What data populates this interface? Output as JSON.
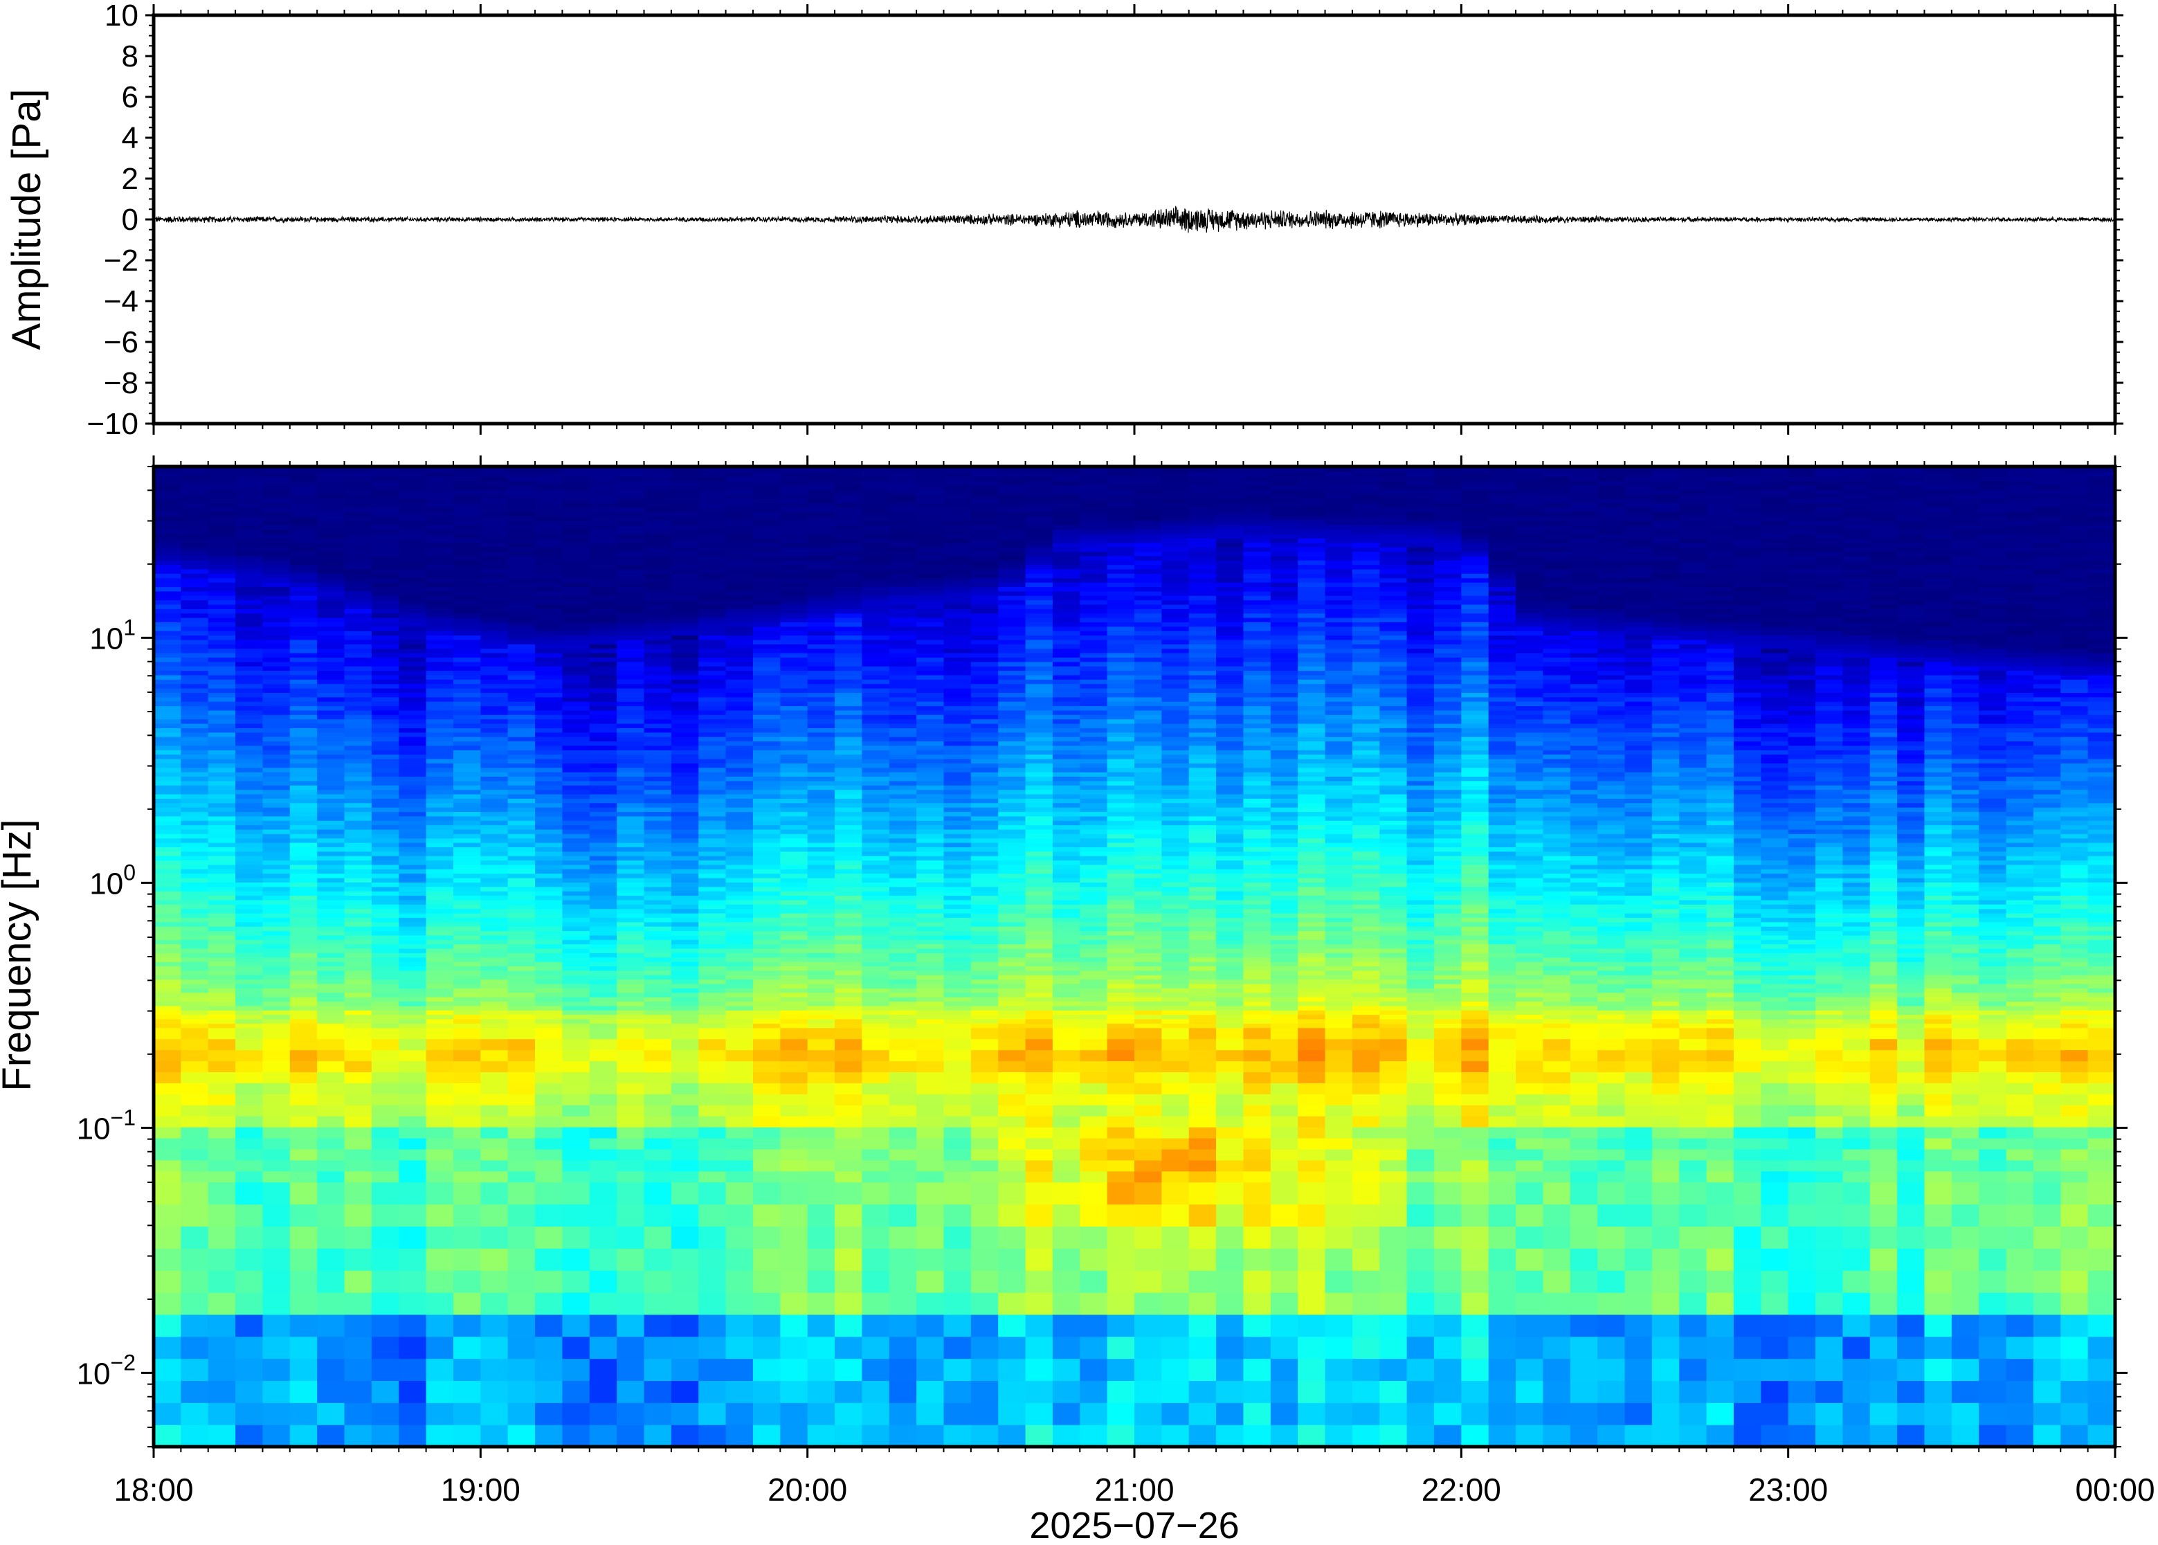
{
  "chart_data": [
    {
      "type": "line",
      "panel": "waveform",
      "ylabel": "Amplitude [Pa]",
      "ylim": [
        -10,
        10
      ],
      "yticks": [
        -10,
        -8,
        -6,
        -4,
        -2,
        0,
        2,
        4,
        6,
        8,
        10
      ],
      "ytick_labels": [
        "−10",
        "−8",
        "−6",
        "−4",
        "−2",
        "0",
        "2",
        "4",
        "6",
        "8",
        "10"
      ],
      "x_range_hours": [
        18,
        24
      ],
      "envelope": {
        "x_hours": [
          18.0,
          18.5,
          19.0,
          19.5,
          20.0,
          20.4,
          20.7,
          20.85,
          21.0,
          21.15,
          21.3,
          21.5,
          21.7,
          21.9,
          22.1,
          22.5,
          23.0,
          23.5,
          24.0
        ],
        "amplitude_pa": [
          0.2,
          0.15,
          0.12,
          0.12,
          0.15,
          0.25,
          0.35,
          0.55,
          0.4,
          0.75,
          0.6,
          0.5,
          0.55,
          0.4,
          0.25,
          0.15,
          0.12,
          0.12,
          0.12
        ]
      },
      "series_color": "#000000"
    },
    {
      "type": "heatmap",
      "panel": "spectrogram",
      "ylabel": "Frequency [Hz]",
      "yscale": "log",
      "ylim_hz": [
        0.005,
        50
      ],
      "yticks_hz": [
        0.01,
        0.1,
        1,
        10
      ],
      "ytick_labels": [
        {
          "base": "10",
          "exp": "−2"
        },
        {
          "base": "10",
          "exp": "−1"
        },
        {
          "base": "10",
          "exp": "0"
        },
        {
          "base": "10",
          "exp": "1"
        }
      ],
      "xlabel": "2025−07−26",
      "xticks_hours": [
        18,
        19,
        20,
        21,
        22,
        23,
        24
      ],
      "xtick_labels": [
        "18:00",
        "19:00",
        "20:00",
        "21:00",
        "22:00",
        "23:00",
        "00:00"
      ],
      "colormap": [
        "#00007f",
        "#0000ff",
        "#007fff",
        "#00ffff",
        "#7fff7f",
        "#ffff00",
        "#ff7f00",
        "#ff0000"
      ],
      "profile_hours": [
        18.0,
        18.4,
        18.8,
        19.2,
        19.6,
        20.0,
        20.3,
        20.6,
        20.8,
        21.0,
        21.2,
        21.4,
        21.6,
        21.8,
        22.0,
        22.2,
        22.6,
        23.0,
        23.4,
        24.0
      ],
      "activity_index": [
        0.45,
        0.35,
        0.25,
        0.15,
        0.22,
        0.35,
        0.5,
        0.6,
        0.8,
        0.85,
        1.0,
        0.95,
        0.9,
        0.8,
        0.7,
        0.35,
        0.3,
        0.25,
        0.2,
        0.15
      ],
      "upper_cutoff_hz": [
        20,
        17,
        11,
        9,
        10,
        12,
        14,
        15,
        24,
        24,
        26,
        26,
        25,
        25,
        24,
        11,
        10,
        9,
        8,
        7
      ],
      "microbarom_band_hz": [
        0.1,
        0.3
      ],
      "microbarom_peak_hz": 0.2,
      "peak_event": {
        "hour": 21.15,
        "frequency_hz": 0.07
      }
    }
  ]
}
